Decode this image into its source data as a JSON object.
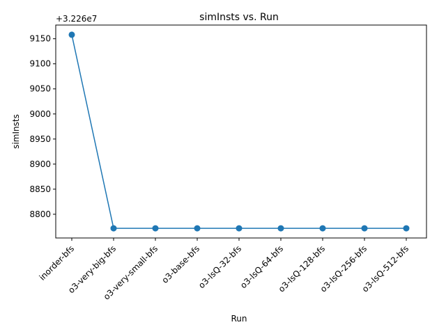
{
  "chart_data": {
    "type": "line",
    "title": "simInsts vs. Run",
    "xlabel": "Run",
    "ylabel": "simInsts",
    "y_offset_label": "+3.226e7",
    "categories": [
      "inorder-bfs",
      "o3-very-big-bfs",
      "o3-very-small-bfs",
      "o3-base-bfs",
      "o3-lsQ-32-bfs",
      "o3-lsQ-64-bfs",
      "o3-lsQ-128-bfs",
      "o3-lsQ-256-bfs",
      "o3-lsQ-512-bfs"
    ],
    "series": [
      {
        "values": [
          9158,
          8772,
          8772,
          8772,
          8772,
          8772,
          8772,
          8772,
          8772
        ]
      }
    ],
    "yticks": [
      8800,
      8850,
      8900,
      8950,
      9000,
      9050,
      9100,
      9150
    ],
    "ylim": [
      8752.7,
      9177.3
    ],
    "grid": false,
    "legend": "none",
    "colors": {
      "line": "#1f77b4",
      "axes": "#000000"
    }
  }
}
